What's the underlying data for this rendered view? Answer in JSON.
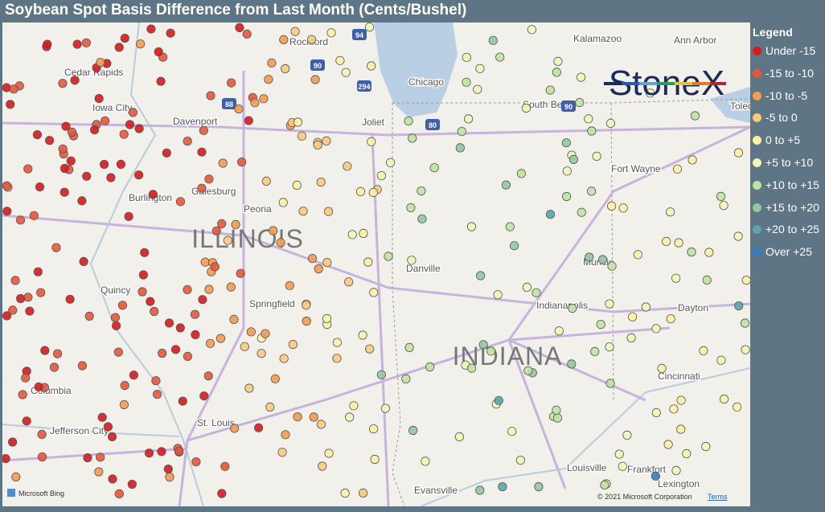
{
  "header": {
    "title": "Soybean Spot Basis Difference from Last Month (Cents/Bushel)"
  },
  "legend": {
    "title": "Legend",
    "items": [
      {
        "label": "Under -15",
        "color": "#d7191c"
      },
      {
        "label": "-15 to -10",
        "color": "#e8553a"
      },
      {
        "label": "-10 to -5",
        "color": "#f59a4f"
      },
      {
        "label": "-5 to 0",
        "color": "#fbc97e"
      },
      {
        "label": "0 to +5",
        "color": "#fdf0a5"
      },
      {
        "label": "+5 to +10",
        "color": "#eef7b6"
      },
      {
        "label": "+10 to +15",
        "color": "#bfe3a3"
      },
      {
        "label": "+15 to +20",
        "color": "#90c8a0"
      },
      {
        "label": "+20 to +25",
        "color": "#5ba5a8"
      },
      {
        "label": "Over +25",
        "color": "#2f7fc1"
      }
    ]
  },
  "map": {
    "logo": "StoneX",
    "cities": [
      "Cedar Rapids",
      "Iowa City",
      "Davenport",
      "Burlington",
      "Galesburg",
      "Peoria",
      "Quincy",
      "Springfield",
      "Columbia",
      "Jefferson City",
      "St. Louis",
      "Rockford",
      "Chicago",
      "Joliet",
      "Danville",
      "Kalamazoo",
      "Ann Arbor",
      "South Bend",
      "Toledo",
      "Fort Wayne",
      "Muncie",
      "Indianapolis",
      "Dayton",
      "Cincinnati",
      "Louisville",
      "Frankfort",
      "Lexington",
      "Evansville"
    ],
    "states": [
      "ILLINOIS",
      "INDIANA"
    ],
    "highways": [
      "94",
      "90",
      "294",
      "88",
      "80",
      "90"
    ],
    "attribution": "Microsoft Bing",
    "copyright": "© 2021 Microsoft Corporation",
    "terms": "Terms"
  }
}
